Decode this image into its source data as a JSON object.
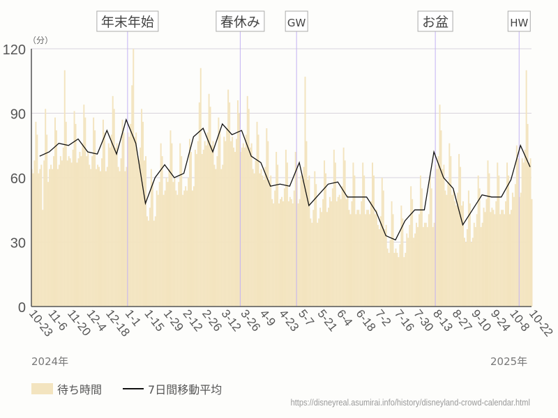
{
  "chart_data": {
    "type": "bar",
    "unit_label": "（分）",
    "ylim": [
      0,
      120
    ],
    "yticks": [
      0,
      30,
      60,
      90,
      120
    ],
    "grid": true,
    "legend_position": "bottom-left",
    "x_start": "2024-10-23",
    "x_end": "2025-10-22",
    "xtick_labels": [
      "10-23",
      "11-6",
      "11-20",
      "12-4",
      "12-18",
      "1-1",
      "1-15",
      "1-29",
      "2-12",
      "2-26",
      "3-12",
      "3-26",
      "4-9",
      "4-23",
      "5-7",
      "5-21",
      "6-4",
      "6-18",
      "7-2",
      "7-16",
      "7-30",
      "8-13",
      "8-27",
      "9-10",
      "9-24",
      "10-8",
      "10-22"
    ],
    "year_labels": [
      "2024年",
      "2025年"
    ],
    "events": [
      {
        "label": "年末年始",
        "date": "2025-01-01"
      },
      {
        "label": "春休み",
        "date": "2025-03-24"
      },
      {
        "label": "GW",
        "date": "2025-05-04"
      },
      {
        "label": "お盆",
        "date": "2025-08-13"
      },
      {
        "label": "HW",
        "date": "2025-10-13"
      }
    ],
    "series": [
      {
        "name": "待ち時間",
        "kind": "bar",
        "color": "#f3e4bf",
        "start": "2024-10-23",
        "step_days": 1,
        "values": [
          64,
          62,
          68,
          86,
          80,
          62,
          64,
          66,
          45,
          68,
          92,
          80,
          58,
          64,
          66,
          64,
          70,
          88,
          82,
          64,
          66,
          70,
          68,
          74,
          110,
          86,
          68,
          70,
          69,
          67,
          73,
          91,
          85,
          67,
          69,
          72,
          70,
          76,
          94,
          88,
          70,
          72,
          66,
          64,
          70,
          88,
          82,
          64,
          66,
          65,
          63,
          69,
          87,
          81,
          63,
          65,
          76,
          74,
          80,
          98,
          92,
          74,
          76,
          65,
          63,
          69,
          87,
          81,
          63,
          65,
          81,
          79,
          85,
          103,
          120,
          79,
          81,
          70,
          68,
          74,
          92,
          86,
          68,
          70,
          42,
          40,
          46,
          64,
          58,
          40,
          42,
          54,
          52,
          58,
          76,
          70,
          52,
          54,
          60,
          58,
          64,
          82,
          76,
          58,
          60,
          54,
          52,
          58,
          76,
          70,
          52,
          54,
          56,
          54,
          60,
          78,
          72,
          54,
          56,
          73,
          71,
          77,
          95,
          111,
          71,
          73,
          77,
          75,
          81,
          99,
          93,
          75,
          77,
          66,
          64,
          70,
          88,
          82,
          64,
          66,
          79,
          77,
          83,
          101,
          95,
          77,
          79,
          74,
          72,
          78,
          96,
          90,
          72,
          74,
          76,
          74,
          80,
          98,
          92,
          74,
          76,
          64,
          62,
          68,
          86,
          80,
          62,
          64,
          61,
          59,
          65,
          83,
          77,
          59,
          61,
          50,
          48,
          54,
          72,
          66,
          48,
          50,
          51,
          49,
          55,
          73,
          67,
          49,
          51,
          50,
          48,
          54,
          72,
          66,
          48,
          50,
          61,
          59,
          65,
          107,
          77,
          59,
          61,
          41,
          39,
          45,
          63,
          57,
          39,
          41,
          46,
          44,
          50,
          68,
          62,
          44,
          46,
          51,
          49,
          55,
          73,
          67,
          49,
          51,
          52,
          50,
          56,
          74,
          68,
          50,
          52,
          45,
          43,
          49,
          67,
          61,
          43,
          45,
          45,
          43,
          49,
          67,
          61,
          43,
          45,
          45,
          43,
          49,
          67,
          61,
          43,
          45,
          38,
          36,
          42,
          60,
          54,
          36,
          38,
          27,
          25,
          31,
          49,
          43,
          25,
          27,
          25,
          23,
          29,
          47,
          41,
          23,
          25,
          34,
          32,
          38,
          56,
          50,
          32,
          34,
          39,
          37,
          43,
          61,
          55,
          37,
          39,
          39,
          37,
          43,
          61,
          55,
          37,
          39,
          66,
          64,
          70,
          94,
          82,
          64,
          66,
          54,
          52,
          58,
          76,
          70,
          52,
          54,
          49,
          47,
          53,
          71,
          65,
          47,
          49,
          32,
          30,
          36,
          54,
          48,
          30,
          32,
          39,
          37,
          43,
          61,
          55,
          37,
          39,
          46,
          44,
          50,
          68,
          62,
          44,
          46,
          45,
          43,
          49,
          67,
          61,
          43,
          45,
          45,
          43,
          49,
          67,
          61,
          43,
          45,
          53,
          51,
          57,
          75,
          69,
          51,
          53,
          69,
          67,
          73,
          110,
          85,
          67,
          69,
          50
        ]
      },
      {
        "name": "7日間移動平均",
        "kind": "line",
        "color": "#111111",
        "start": "2024-10-29",
        "step_days": 7,
        "values": [
          70,
          72,
          76,
          75,
          78,
          72,
          71,
          82,
          71,
          87,
          76,
          48,
          60,
          66,
          60,
          62,
          79,
          83,
          72,
          85,
          80,
          82,
          70,
          67,
          56,
          57,
          56,
          67,
          47,
          52,
          57,
          58,
          51,
          51,
          51,
          44,
          33,
          31,
          40,
          45,
          45,
          72,
          60,
          55,
          38,
          45,
          52,
          51,
          51,
          59,
          75,
          65
        ]
      }
    ]
  },
  "legend": {
    "bar_label": "待ち時間",
    "line_label": "7日間移動平均"
  },
  "source_url": "https://disneyreal.asumirai.info/history/disneyland-crowd-calendar.html"
}
